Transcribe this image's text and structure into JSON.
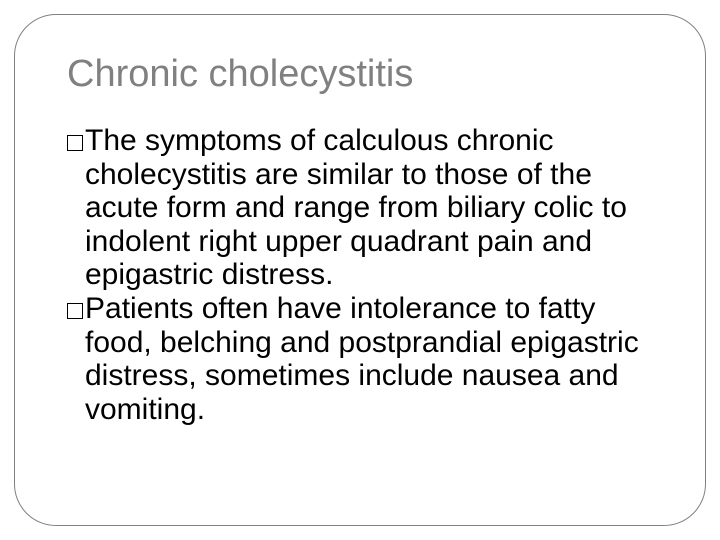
{
  "slide": {
    "title": "Chronic cholecystitis",
    "title_fontsize": 38,
    "title_color": "#808080",
    "body_fontsize": 30,
    "body_color": "#000000",
    "body_line_height": 1.12,
    "frame_border_color": "#808080",
    "frame_border_radius": 42,
    "background_color": "#ffffff",
    "bullet_marker": "hollow-square",
    "bullets": [
      "The symptoms of calculous chronic cholecystitis are similar to those of the acute form and range from biliary colic to indolent right upper quadrant pain and epigastric distress.",
      "Patients often have intolerance to fatty food, belching and postprandial epigastric distress, sometimes include nausea and vomiting."
    ]
  }
}
